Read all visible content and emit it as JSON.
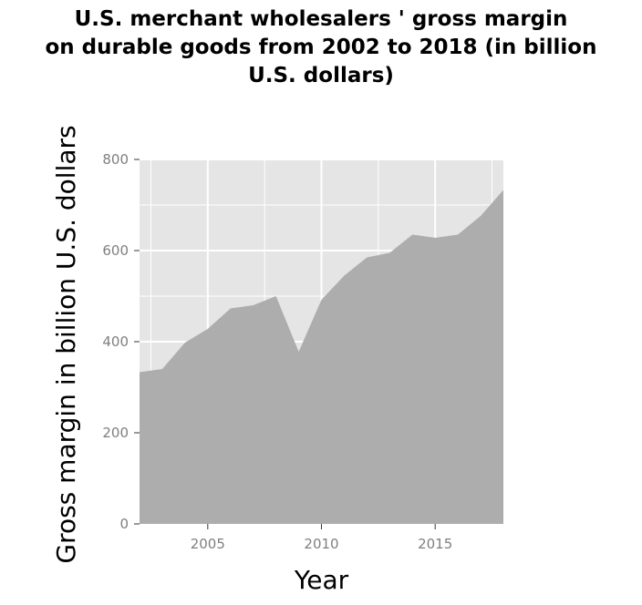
{
  "chart_data": {
    "type": "area",
    "title_lines": [
      "U.S. merchant wholesalers ' gross margin",
      "on durable goods from 2002 to 2018 (in billion",
      "U.S. dollars)"
    ],
    "xlabel": "Year",
    "ylabel": "Gross margin in billion U.S. dollars",
    "xlim": [
      2002,
      2018
    ],
    "ylim": [
      0,
      800
    ],
    "xticks": [
      2005,
      2010,
      2015
    ],
    "yticks": [
      0,
      200,
      400,
      600,
      800
    ],
    "x": [
      2002,
      2003,
      2004,
      2005,
      2006,
      2007,
      2008,
      2009,
      2010,
      2011,
      2012,
      2013,
      2014,
      2015,
      2016,
      2017,
      2018
    ],
    "values": [
      333,
      340,
      398,
      428,
      473,
      480,
      500,
      378,
      492,
      545,
      585,
      595,
      635,
      628,
      635,
      676,
      733
    ],
    "grid": true,
    "legend": "none",
    "colors": {
      "area": "#adadad",
      "panel": "#e5e5e5",
      "grid": "#ffffff",
      "tick": "#7f7f7f"
    }
  }
}
